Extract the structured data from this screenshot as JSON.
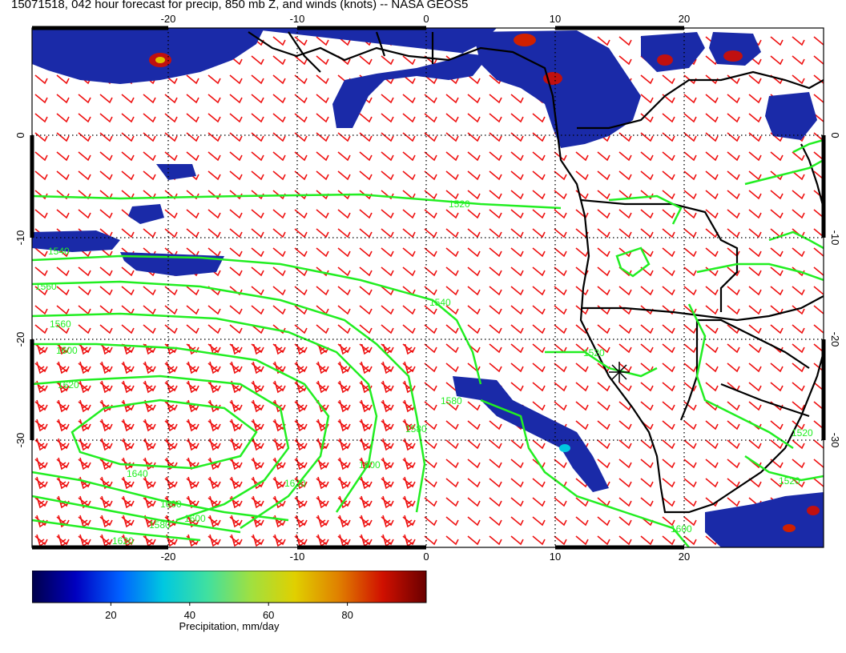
{
  "title": "15071518, 042 hour forecast for precip, 850 mb Z, and winds (knots) -- NASA GEOS5",
  "map": {
    "lon_ticks": [
      "-20",
      "-10",
      "0",
      "10",
      "20"
    ],
    "lat_ticks": [
      "0",
      "-10",
      "-20",
      "-30"
    ],
    "lon_range": [
      -30,
      30
    ],
    "lat_range": [
      -39,
      10
    ],
    "grid": "dotted",
    "projection": "cylindrical",
    "colors": {
      "precip_low": "#0a1a8a",
      "precip_high": "#8b0000",
      "contour": "#22ee22",
      "barbs": "#ee1111",
      "coast": "#000000"
    },
    "contour_labels": [
      "1520",
      "1540",
      "1540",
      "1560",
      "1560",
      "1580",
      "1600",
      "1620",
      "1640",
      "1620",
      "1600",
      "1580",
      "1580",
      "1600",
      "1520",
      "1600",
      "1620",
      "1520",
      "1600",
      "1520"
    ],
    "marker": "star-icon"
  },
  "colorbar": {
    "label": "Precipitation, mm/day",
    "ticks": [
      "20",
      "40",
      "60",
      "80"
    ],
    "tick_values": [
      20,
      40,
      60,
      80
    ],
    "range": [
      0,
      100
    ],
    "stops": [
      "#00004a",
      "#0000c0",
      "#0060ff",
      "#00c8e0",
      "#40e0a0",
      "#a0e040",
      "#e0d000",
      "#e08000",
      "#d01000",
      "#6a0000"
    ]
  }
}
